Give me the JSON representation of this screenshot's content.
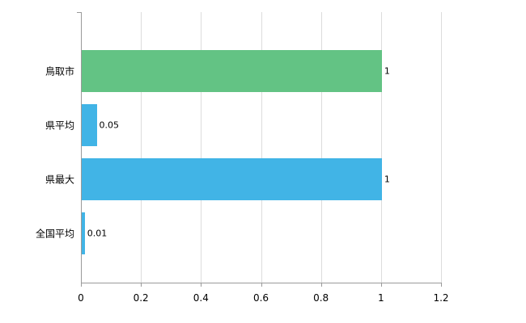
{
  "chart_data": {
    "type": "bar",
    "orientation": "horizontal",
    "title": "",
    "xlabel": "",
    "ylabel": "",
    "categories": [
      "鳥取市",
      "県平均",
      "県最大",
      "全国平均"
    ],
    "values": [
      1,
      0.05,
      1,
      0.01
    ],
    "value_labels": [
      "1",
      "0.05",
      "1",
      "0.01"
    ],
    "bar_colors": [
      "#63c384",
      "#41b4e6",
      "#41b4e6",
      "#41b4e6"
    ],
    "xlim": [
      0,
      1.2
    ],
    "x_ticks": [
      0,
      0.2,
      0.4,
      0.6,
      0.8,
      1,
      1.2
    ],
    "x_tick_labels": [
      "0",
      "0.2",
      "0.4",
      "0.6",
      "0.8",
      "1",
      "1.2"
    ],
    "grid": true,
    "legend": "none",
    "colors": {
      "background": "#ffffff",
      "axis": "#9a9a9a",
      "gridline": "#dcdcdc",
      "text": "#000000"
    }
  }
}
